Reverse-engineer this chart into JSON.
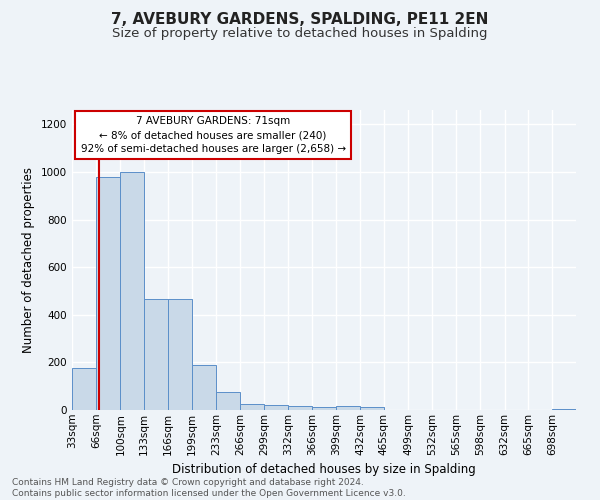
{
  "title": "7, AVEBURY GARDENS, SPALDING, PE11 2EN",
  "subtitle": "Size of property relative to detached houses in Spalding",
  "xlabel": "Distribution of detached houses by size in Spalding",
  "ylabel": "Number of detached properties",
  "footnote1": "Contains HM Land Registry data © Crown copyright and database right 2024.",
  "footnote2": "Contains public sector information licensed under the Open Government Licence v3.0.",
  "annotation_title": "7 AVEBURY GARDENS: 71sqm",
  "annotation_line1": "← 8% of detached houses are smaller (240)",
  "annotation_line2": "92% of semi-detached houses are larger (2,658) →",
  "property_size": 71,
  "bar_color": "#c9d9e8",
  "bar_edge_color": "#5b8fc9",
  "vline_color": "#cc0000",
  "annotation_box_color": "#cc0000",
  "categories": [
    "33sqm",
    "66sqm",
    "100sqm",
    "133sqm",
    "166sqm",
    "199sqm",
    "233sqm",
    "266sqm",
    "299sqm",
    "332sqm",
    "366sqm",
    "399sqm",
    "432sqm",
    "465sqm",
    "499sqm",
    "532sqm",
    "565sqm",
    "598sqm",
    "632sqm",
    "665sqm",
    "698sqm"
  ],
  "bin_edges": [
    33,
    66,
    100,
    133,
    166,
    199,
    233,
    266,
    299,
    332,
    366,
    399,
    432,
    465,
    499,
    532,
    565,
    598,
    632,
    665,
    698,
    731
  ],
  "values": [
    175,
    980,
    1000,
    465,
    465,
    190,
    75,
    27,
    20,
    17,
    12,
    15,
    13,
    0,
    0,
    0,
    0,
    0,
    2,
    0,
    4
  ],
  "ylim": [
    0,
    1260
  ],
  "yticks": [
    0,
    200,
    400,
    600,
    800,
    1000,
    1200
  ],
  "background_color": "#eef3f8",
  "grid_color": "#ffffff",
  "title_fontsize": 11,
  "subtitle_fontsize": 9.5,
  "label_fontsize": 8.5,
  "tick_fontsize": 7.5,
  "footnote_fontsize": 6.5
}
